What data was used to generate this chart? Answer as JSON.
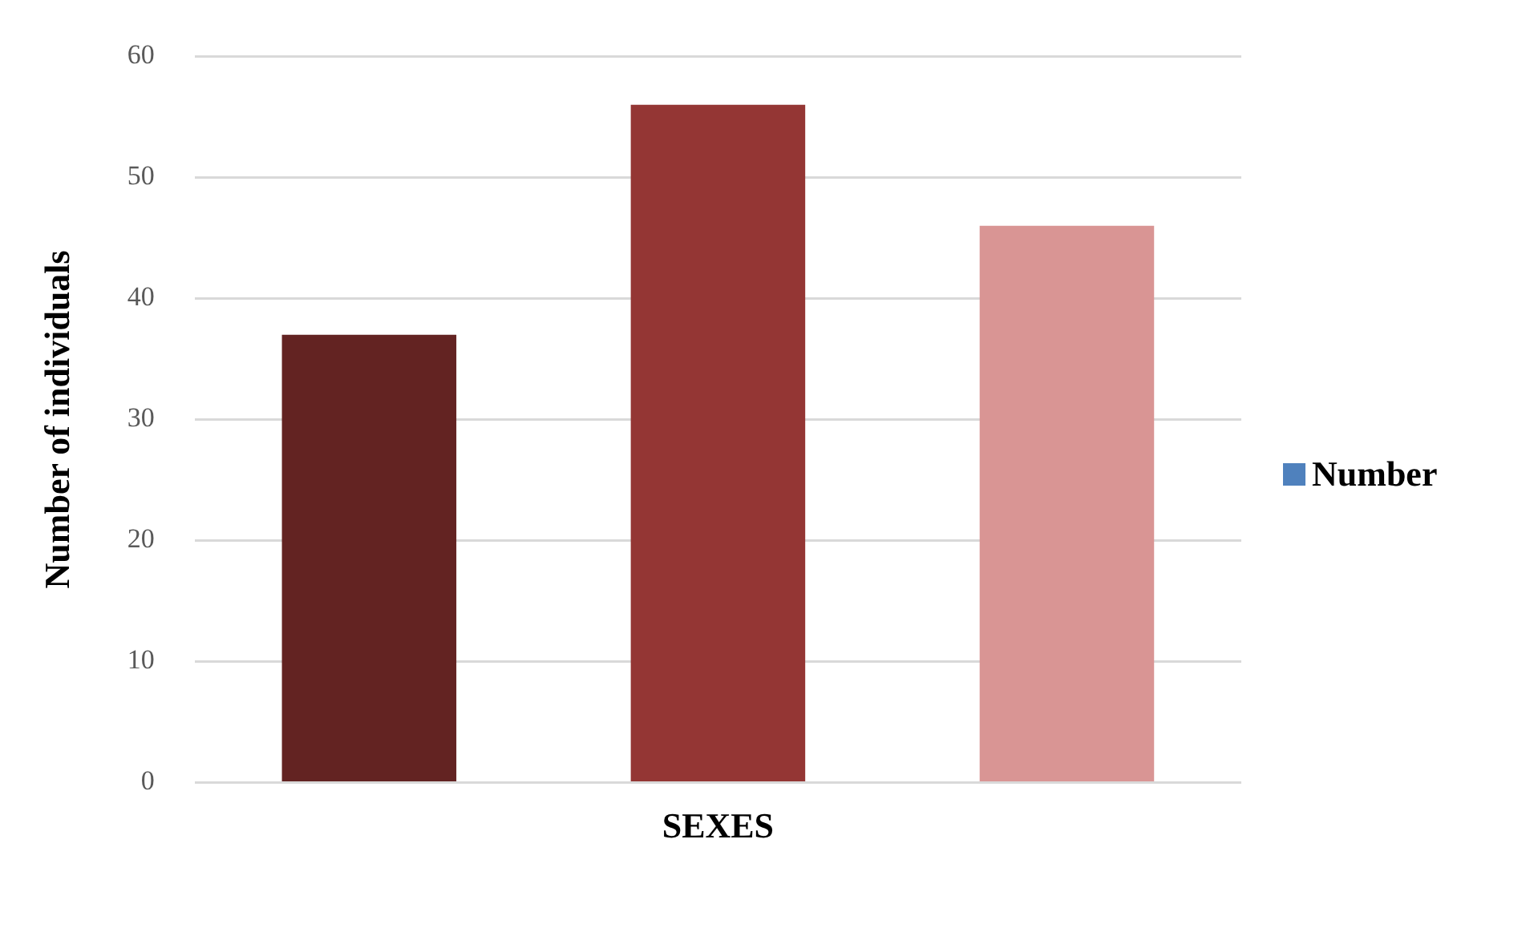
{
  "chart_data": {
    "type": "bar",
    "xlabel": "SEXES",
    "ylabel": "Number of individuals",
    "categories": [
      null,
      null,
      null
    ],
    "series": [
      {
        "name": "Number",
        "color": "#4f81bd",
        "colors": [
          "#632322",
          "#943634",
          "#d99594"
        ],
        "values": [
          37,
          56,
          46
        ]
      }
    ],
    "ylim": [
      0,
      60
    ],
    "yticks": [
      0,
      10,
      20,
      30,
      40,
      50,
      60
    ],
    "grid": "y",
    "legend": "right"
  }
}
